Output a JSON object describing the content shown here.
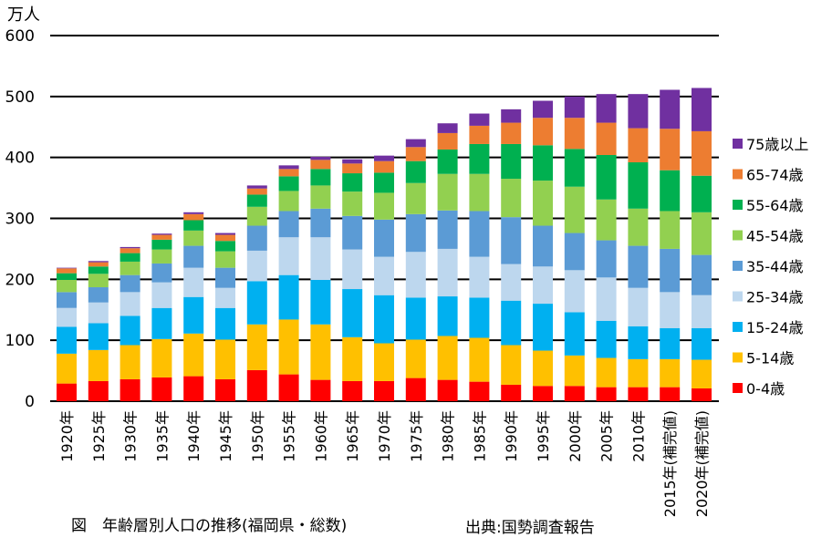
{
  "chart_data": {
    "type": "bar",
    "stacked": true,
    "title": "図　年齢層別人口の推移(福岡県・総数)",
    "source": "出典:国勢調査報告",
    "ylabel": "万人",
    "xlabel": "",
    "ylim": [
      0,
      600
    ],
    "yticks": [
      0,
      100,
      200,
      300,
      400,
      500,
      600
    ],
    "grid": true,
    "legend_position": "right",
    "categories": [
      "1920年",
      "1925年",
      "1930年",
      "1935年",
      "1940年",
      "1945年",
      "1950年",
      "1955年",
      "1960年",
      "1965年",
      "1970年",
      "1975年",
      "1980年",
      "1985年",
      "1990年",
      "1995年",
      "2000年",
      "2005年",
      "2010年",
      "2015年(補完値)",
      "2020年(補完値)"
    ],
    "series": [
      {
        "name": "0-4歳",
        "color": "#ff0000",
        "values": [
          29,
          33,
          36,
          39,
          41,
          36,
          51,
          44,
          35,
          33,
          33,
          38,
          35,
          32,
          27,
          25,
          25,
          23,
          23,
          23,
          21
        ]
      },
      {
        "name": "5-14歳",
        "color": "#ffc000",
        "values": [
          49,
          51,
          56,
          63,
          70,
          65,
          75,
          90,
          91,
          72,
          62,
          63,
          72,
          72,
          65,
          58,
          50,
          48,
          46,
          46,
          47
        ]
      },
      {
        "name": "15-24歳",
        "color": "#00b0f0",
        "values": [
          44,
          44,
          48,
          51,
          60,
          52,
          71,
          73,
          73,
          79,
          79,
          69,
          65,
          66,
          73,
          77,
          71,
          61,
          54,
          51,
          52
        ]
      },
      {
        "name": "25-34歳",
        "color": "#bdd7ee",
        "values": [
          31,
          34,
          39,
          42,
          48,
          33,
          50,
          62,
          70,
          65,
          63,
          75,
          78,
          67,
          60,
          61,
          69,
          71,
          63,
          59,
          54
        ]
      },
      {
        "name": "35-44歳",
        "color": "#5b9bd5",
        "values": [
          26,
          25,
          28,
          31,
          36,
          33,
          41,
          43,
          47,
          55,
          61,
          62,
          63,
          75,
          77,
          67,
          61,
          61,
          69,
          71,
          66
        ]
      },
      {
        "name": "45-54歳",
        "color": "#92d050",
        "values": [
          20,
          22,
          22,
          23,
          25,
          27,
          31,
          33,
          38,
          40,
          44,
          51,
          60,
          61,
          63,
          74,
          76,
          67,
          61,
          62,
          70
        ]
      },
      {
        "name": "55-64歳",
        "color": "#00b050",
        "values": [
          11,
          12,
          14,
          16,
          17,
          17,
          20,
          24,
          27,
          30,
          33,
          36,
          40,
          49,
          57,
          58,
          62,
          73,
          76,
          67,
          60
        ]
      },
      {
        "name": "65-74歳",
        "color": "#ed7d31",
        "values": [
          8,
          7,
          8,
          8,
          10,
          10,
          10,
          12,
          15,
          16,
          19,
          23,
          27,
          30,
          35,
          45,
          51,
          53,
          56,
          68,
          73
        ]
      },
      {
        "name": "75歳以上",
        "color": "#7030a0",
        "values": [
          1,
          2,
          2,
          2,
          3,
          3,
          5,
          6,
          5,
          7,
          9,
          13,
          16,
          20,
          22,
          28,
          35,
          47,
          56,
          64,
          71
        ]
      }
    ]
  }
}
